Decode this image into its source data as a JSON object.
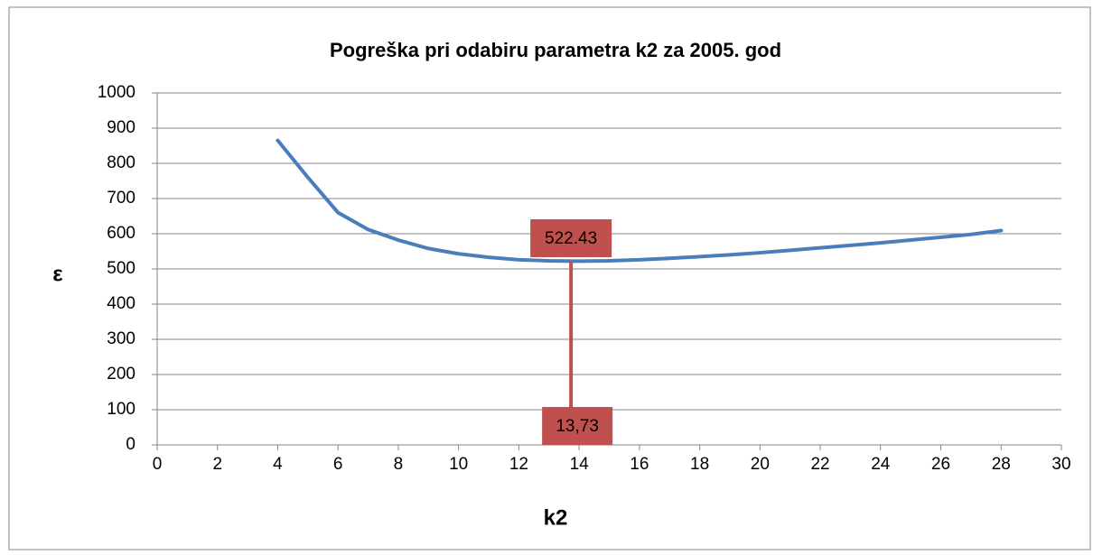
{
  "chart_data": {
    "type": "line",
    "title": "Pogreška pri odabiru parametra k2 za 2005. god",
    "xlabel": "k2",
    "ylabel": "ε",
    "x": [
      4,
      5,
      6,
      7,
      8,
      9,
      10,
      11,
      12,
      13,
      14,
      15,
      16,
      17,
      18,
      19,
      20,
      21,
      22,
      23,
      24,
      25,
      26,
      27,
      28
    ],
    "series": [
      {
        "color": "#4a7ebb",
        "values": [
          865,
          760,
          660,
          612,
          582,
          558,
          543,
          533,
          526,
          523,
          522,
          523,
          526,
          530,
          535,
          540,
          546,
          553,
          560,
          567,
          574,
          582,
          590,
          598,
          609
        ]
      }
    ],
    "marker": {
      "x": 13.73,
      "x_label": "13,73",
      "y": 522.43,
      "color": "#c0504d"
    },
    "xlim": [
      0,
      30
    ],
    "xticks": [
      0,
      2,
      4,
      6,
      8,
      10,
      12,
      14,
      16,
      18,
      20,
      22,
      24,
      26,
      28,
      30
    ],
    "ylim": [
      0,
      1000
    ],
    "yticks": [
      0,
      100,
      200,
      300,
      400,
      500,
      600,
      700,
      800,
      900,
      1000
    ],
    "grid": true
  }
}
